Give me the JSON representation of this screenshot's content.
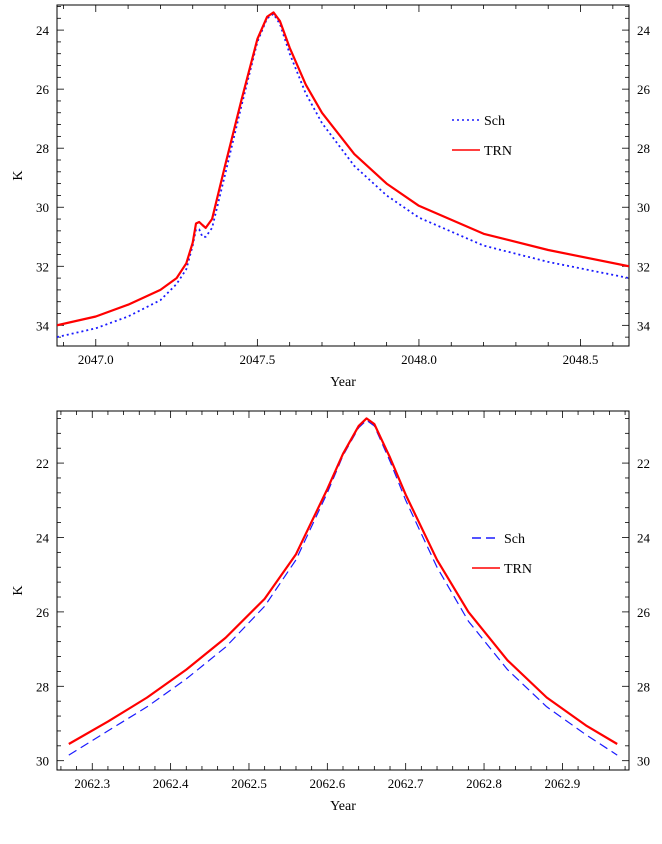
{
  "chart_data": [
    {
      "type": "line",
      "xlabel": "Year",
      "ylabel": "K",
      "xlim": [
        2046.88,
        2048.65
      ],
      "ylim": [
        34.7,
        23.15
      ],
      "y_inverted": true,
      "x_ticks": [
        2047.0,
        2047.5,
        2048.0,
        2048.5
      ],
      "x_tick_labels": [
        "2047.0",
        "2047.5",
        "2048.0",
        "2048.5"
      ],
      "y_ticks": [
        24,
        26,
        28,
        30,
        32,
        34
      ],
      "y_tick_labels": [
        "24",
        "26",
        "28",
        "30",
        "32",
        "34"
      ],
      "right_axis_labels": true,
      "grid": false,
      "legend_position": "right",
      "series": [
        {
          "name": "Sch",
          "style": "dotted",
          "color": "#1a1aff",
          "x": [
            2046.88,
            2047.0,
            2047.1,
            2047.2,
            2047.25,
            2047.28,
            2047.3,
            2047.31,
            2047.32,
            2047.33,
            2047.34,
            2047.36,
            2047.4,
            2047.45,
            2047.5,
            2047.53,
            2047.55,
            2047.57,
            2047.6,
            2047.65,
            2047.7,
            2047.8,
            2047.9,
            2048.0,
            2048.2,
            2048.4,
            2048.65
          ],
          "values": [
            34.4,
            34.1,
            33.7,
            33.15,
            32.6,
            32.1,
            31.3,
            30.75,
            30.75,
            31.0,
            31.0,
            30.7,
            28.9,
            26.6,
            24.4,
            23.6,
            23.45,
            23.8,
            24.8,
            26.15,
            27.15,
            28.6,
            29.6,
            30.35,
            31.3,
            31.85,
            32.4
          ]
        },
        {
          "name": "TRN",
          "style": "solid",
          "color": "#ff0000",
          "x": [
            2046.88,
            2047.0,
            2047.1,
            2047.2,
            2047.25,
            2047.28,
            2047.3,
            2047.31,
            2047.32,
            2047.33,
            2047.34,
            2047.36,
            2047.4,
            2047.45,
            2047.5,
            2047.53,
            2047.55,
            2047.57,
            2047.6,
            2047.65,
            2047.7,
            2047.8,
            2047.9,
            2048.0,
            2048.2,
            2048.4,
            2048.65
          ],
          "values": [
            34.0,
            33.7,
            33.3,
            32.8,
            32.4,
            31.9,
            31.2,
            30.55,
            30.5,
            30.6,
            30.7,
            30.4,
            28.6,
            26.4,
            24.3,
            23.55,
            23.4,
            23.7,
            24.6,
            25.85,
            26.8,
            28.2,
            29.2,
            29.95,
            30.9,
            31.45,
            32.0
          ]
        }
      ]
    },
    {
      "type": "line",
      "xlabel": "Year",
      "ylabel": "K",
      "xlim": [
        2062.255,
        2062.985
      ],
      "ylim": [
        30.25,
        20.6
      ],
      "y_inverted": true,
      "x_ticks": [
        2062.3,
        2062.4,
        2062.5,
        2062.6,
        2062.7,
        2062.8,
        2062.9
      ],
      "x_tick_labels": [
        "2062.3",
        "2062.4",
        "2062.5",
        "2062.6",
        "2062.7",
        "2062.8",
        "2062.9"
      ],
      "y_ticks": [
        22,
        24,
        26,
        28,
        30
      ],
      "y_tick_labels": [
        "22",
        "24",
        "26",
        "28",
        "30"
      ],
      "right_axis_labels": true,
      "grid": false,
      "legend_position": "right",
      "series": [
        {
          "name": "Sch",
          "style": "dashed",
          "color": "#1a1aff",
          "x": [
            2062.27,
            2062.32,
            2062.37,
            2062.42,
            2062.47,
            2062.52,
            2062.56,
            2062.6,
            2062.62,
            2062.64,
            2062.65,
            2062.66,
            2062.68,
            2062.7,
            2062.74,
            2062.78,
            2062.83,
            2062.88,
            2062.93,
            2062.97
          ],
          "values": [
            29.85,
            29.2,
            28.55,
            27.8,
            26.95,
            25.85,
            24.6,
            22.8,
            21.8,
            21.05,
            20.85,
            21.0,
            21.95,
            23.0,
            24.8,
            26.25,
            27.55,
            28.55,
            29.3,
            29.85
          ]
        },
        {
          "name": "TRN",
          "style": "solid",
          "color": "#ff0000",
          "x": [
            2062.27,
            2062.32,
            2062.37,
            2062.42,
            2062.47,
            2062.52,
            2062.56,
            2062.6,
            2062.62,
            2062.64,
            2062.65,
            2062.66,
            2062.68,
            2062.7,
            2062.74,
            2062.78,
            2062.83,
            2062.88,
            2062.93,
            2062.97
          ],
          "values": [
            29.55,
            28.95,
            28.3,
            27.55,
            26.7,
            25.65,
            24.45,
            22.7,
            21.75,
            21.0,
            20.8,
            20.95,
            21.85,
            22.85,
            24.6,
            26.0,
            27.3,
            28.3,
            29.05,
            29.55
          ]
        }
      ]
    }
  ]
}
